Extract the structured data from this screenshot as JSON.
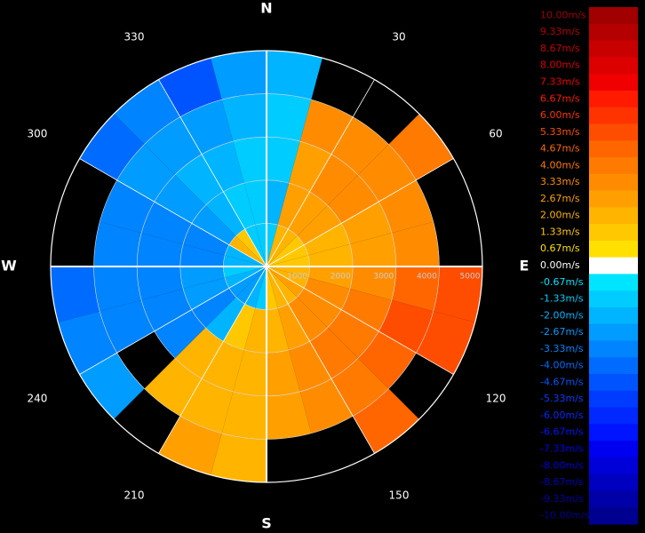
{
  "chart_data": {
    "type": "radar-ppi",
    "azimuths": [
      0,
      15,
      30,
      45,
      60,
      75,
      90,
      105,
      120,
      135,
      150,
      165,
      180,
      195,
      210,
      225,
      240,
      255,
      270,
      285,
      300,
      315,
      330,
      345
    ],
    "range_bins": [
      0,
      1000,
      2000,
      3000,
      4000,
      5000
    ],
    "values": [
      [
        -1.33,
        -2,
        -1.33,
        -1.33,
        -2
      ],
      [
        2,
        2.67,
        2.67,
        3.33,
        null
      ],
      [
        2,
        2.67,
        3.33,
        3.33,
        null
      ],
      [
        1.33,
        2.67,
        3.33,
        3.33,
        4
      ],
      [
        1.33,
        2,
        2.67,
        3.33,
        null
      ],
      [
        1.33,
        2,
        2.67,
        3.33,
        null
      ],
      [
        2,
        2.67,
        3.33,
        4.67,
        5.33
      ],
      [
        2,
        3.33,
        4,
        5.33,
        5.33
      ],
      [
        2.67,
        3.33,
        4,
        4.67,
        null
      ],
      [
        2,
        3.33,
        4,
        4,
        4.67
      ],
      [
        2,
        2.67,
        3.33,
        3.33,
        null
      ],
      [
        1.33,
        2,
        2.67,
        2.67,
        null
      ],
      [
        -1.33,
        2,
        2,
        2,
        2
      ],
      [
        -2,
        1.33,
        2,
        2,
        2.67
      ],
      [
        -2.67,
        -2,
        2,
        2,
        null
      ],
      [
        -2.67,
        -3.33,
        -3.33,
        null,
        -2.67
      ],
      [
        -2,
        -2.67,
        -3.33,
        -3.33,
        -3.33
      ],
      [
        -1.33,
        -2.67,
        -3.33,
        -3.33,
        -4
      ],
      [
        -2,
        -3.33,
        -3.33,
        -3.33,
        null
      ],
      [
        -2,
        -3.33,
        -3.33,
        -3.33,
        null
      ],
      [
        2,
        -2.67,
        -2.67,
        -2.67,
        -4
      ],
      [
        1.33,
        -2,
        -2,
        -2.67,
        -3.33
      ],
      [
        -1.33,
        -1.33,
        -2,
        -2.67,
        -4.67
      ],
      [
        -1.33,
        -1.33,
        -1.33,
        -2,
        -2.67
      ]
    ],
    "rlim": [
      0,
      5000
    ],
    "rticks": [
      1000,
      2000,
      3000,
      4000,
      5000
    ],
    "azimuth_ticks": [
      30,
      60,
      120,
      150,
      210,
      240,
      300,
      330
    ],
    "compass_ticks": [
      {
        "value": 0,
        "label": "N"
      },
      {
        "value": 90,
        "label": "E"
      },
      {
        "value": 180,
        "label": "S"
      },
      {
        "value": 270,
        "label": "W"
      }
    ],
    "colorbar": [
      {
        "value": 10,
        "label": "10.00m/s",
        "color": "#a00000"
      },
      {
        "value": 9.33,
        "label": "9.33m/s",
        "color": "#b40000"
      },
      {
        "value": 8.67,
        "label": "8.67m/s",
        "color": "#c80000"
      },
      {
        "value": 8,
        "label": "8.00m/s",
        "color": "#dc0000"
      },
      {
        "value": 7.33,
        "label": "7.33m/s",
        "color": "#f00000"
      },
      {
        "value": 6.67,
        "label": "6.67m/s",
        "color": "#ff1a00"
      },
      {
        "value": 6,
        "label": "6.00m/s",
        "color": "#ff3300"
      },
      {
        "value": 5.33,
        "label": "5.33m/s",
        "color": "#ff4d00"
      },
      {
        "value": 4.67,
        "label": "4.67m/s",
        "color": "#ff6600"
      },
      {
        "value": 4,
        "label": "4.00m/s",
        "color": "#ff7a00"
      },
      {
        "value": 3.33,
        "label": "3.33m/s",
        "color": "#ff8c00"
      },
      {
        "value": 2.67,
        "label": "2.67m/s",
        "color": "#ffa000"
      },
      {
        "value": 2,
        "label": "2.00m/s",
        "color": "#ffb400"
      },
      {
        "value": 1.33,
        "label": "1.33m/s",
        "color": "#ffc800"
      },
      {
        "value": 0.67,
        "label": "0.67m/s",
        "color": "#ffe000"
      },
      {
        "value": 0,
        "label": "0.00m/s",
        "color": "#ffffff"
      },
      {
        "value": -0.67,
        "label": "-0.67m/s",
        "color": "#00e5ff"
      },
      {
        "value": -1.33,
        "label": "-1.33m/s",
        "color": "#00ccff"
      },
      {
        "value": -2,
        "label": "-2.00m/s",
        "color": "#00b4ff"
      },
      {
        "value": -2.67,
        "label": "-2.67m/s",
        "color": "#009cff"
      },
      {
        "value": -3.33,
        "label": "-3.33m/s",
        "color": "#0084ff"
      },
      {
        "value": -4,
        "label": "-4.00m/s",
        "color": "#006cff"
      },
      {
        "value": -4.67,
        "label": "-4.67m/s",
        "color": "#0054ff"
      },
      {
        "value": -5.33,
        "label": "-5.33m/s",
        "color": "#003cff"
      },
      {
        "value": -6,
        "label": "-6.00m/s",
        "color": "#0028ff"
      },
      {
        "value": -6.67,
        "label": "-6.67m/s",
        "color": "#0014ff"
      },
      {
        "value": -7.33,
        "label": "-7.33m/s",
        "color": "#0000f0"
      },
      {
        "value": -8,
        "label": "-8.00m/s",
        "color": "#0000d8"
      },
      {
        "value": -8.67,
        "label": "-8.67m/s",
        "color": "#0000c0"
      },
      {
        "value": -9.33,
        "label": "-9.33m/s",
        "color": "#0000a8"
      },
      {
        "value": -10,
        "label": "-10.00m/s",
        "color": "#000090"
      }
    ]
  }
}
